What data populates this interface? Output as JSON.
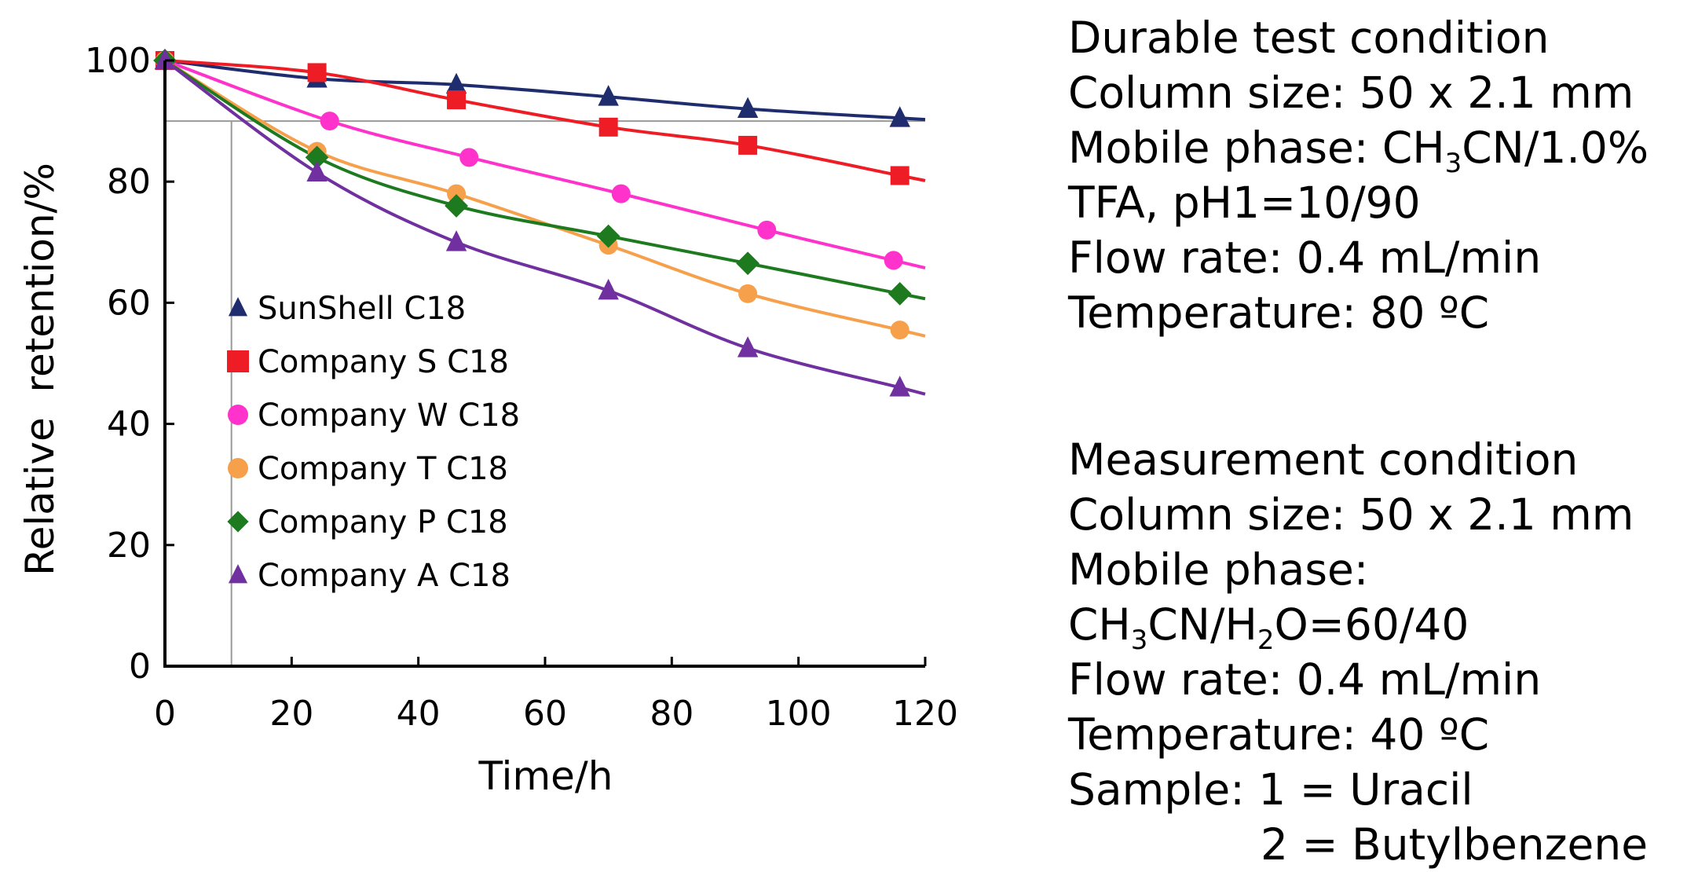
{
  "chart_data": {
    "type": "line",
    "title": "",
    "xlabel": "Time/h",
    "ylabel": "Relative  retention/%",
    "xlim": [
      0,
      120
    ],
    "ylim": [
      0,
      100
    ],
    "xticks": [
      "0",
      "20",
      "40",
      "60",
      "80",
      "100",
      "120"
    ],
    "yticks": [
      "0",
      "20",
      "40",
      "60",
      "80",
      "100"
    ],
    "reference_lines": {
      "horizontal_y": 90,
      "vertical_x": 10.5
    },
    "legend_position": "lower-left inside plot",
    "series": [
      {
        "name": "SunShell C18",
        "color": "#1f2d6e",
        "marker": "triangle",
        "x": [
          0,
          24,
          46,
          70,
          92,
          116
        ],
        "y": [
          100,
          97,
          96,
          94,
          92,
          90.5
        ]
      },
      {
        "name": "Company S C18",
        "color": "#ee1c24",
        "marker": "square",
        "x": [
          0,
          24,
          46,
          70,
          92,
          116
        ],
        "y": [
          100,
          98,
          93.5,
          89,
          86,
          81
        ]
      },
      {
        "name": "Company W C18",
        "color": "#ff33cc",
        "marker": "circle",
        "x": [
          0,
          26,
          48,
          72,
          95,
          115
        ],
        "y": [
          100,
          90,
          84,
          78,
          72,
          67
        ]
      },
      {
        "name": "Company T C18",
        "color": "#f7a04c",
        "marker": "circle",
        "x": [
          0,
          24,
          46,
          70,
          92,
          116
        ],
        "y": [
          100,
          85,
          78,
          69.5,
          61.5,
          55.5
        ]
      },
      {
        "name": "Company P C18",
        "color": "#1e7a1e",
        "marker": "diamond",
        "x": [
          0,
          24,
          46,
          70,
          92,
          116
        ],
        "y": [
          100,
          84,
          76,
          71,
          66.5,
          61.5
        ]
      },
      {
        "name": "Company A C18",
        "color": "#7030a0",
        "marker": "triangle",
        "x": [
          0,
          24,
          46,
          70,
          92,
          116
        ],
        "y": [
          100,
          81.5,
          70,
          62,
          52.5,
          46
        ]
      }
    ]
  },
  "info": {
    "durable": {
      "title": "Durable test condition",
      "column_size": "Column size:  50 x 2.1 mm",
      "mobile_phase_prefix": "Mobile phase:  CH",
      "mobile_phase_sub": "3",
      "mobile_phase_suffix": "CN/1.0%",
      "mobile_phase_line2": "TFA, pH1=10/90",
      "flow_rate": "Flow rate: 0.4 mL/min",
      "temperature": "Temperature: 80 ºC"
    },
    "measurement": {
      "title": "Measurement condition",
      "column_size": "Column size: 50 x 2.1 mm",
      "mobile_phase_label": "Mobile phase:",
      "mp_part1": "CH",
      "mp_sub1": "3",
      "mp_part2": "CN/H",
      "mp_sub2": "2",
      "mp_part3": "O=60/40",
      "flow_rate": "Flow rate: 0.4 mL/min",
      "temperature": "Temperature: 40 ºC",
      "sample_line1": "Sample: 1 = Uracil",
      "sample_line2": "2 = Butylbenzene"
    }
  }
}
